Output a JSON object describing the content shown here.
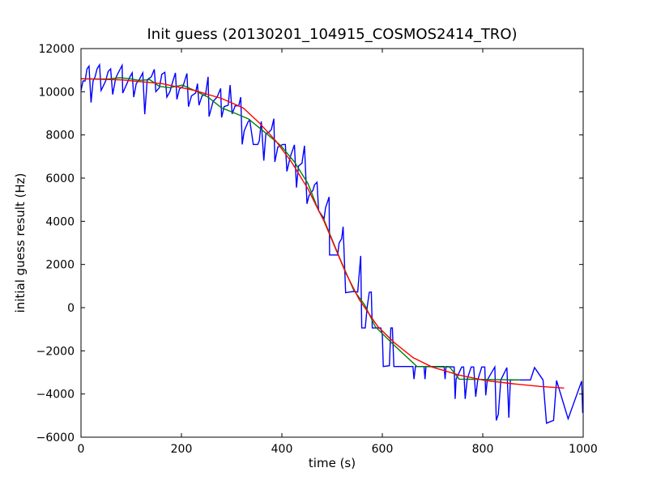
{
  "chart_data": {
    "type": "line",
    "title": "Init guess (20130201_104915_COSMOS2414_TRO)",
    "xlabel": "time (s)",
    "ylabel": "initial guess result (Hz)",
    "xlim": [
      0,
      1000
    ],
    "ylim": [
      -6000,
      12000
    ],
    "xticks": [
      0,
      200,
      400,
      600,
      800,
      1000
    ],
    "yticks": [
      -6000,
      -4000,
      -2000,
      0,
      2000,
      4000,
      6000,
      8000,
      10000,
      12000
    ],
    "grid": false,
    "series": [
      {
        "name": "raw",
        "color": "#0000ff",
        "x": [
          0,
          4,
          8,
          12,
          16,
          20,
          24,
          28,
          32,
          37,
          40,
          44,
          49,
          54,
          59,
          63,
          69,
          74,
          82,
          83,
          89,
          96,
          102,
          105,
          110,
          116,
          123,
          127,
          132,
          140,
          146,
          149,
          156,
          161,
          167,
          171,
          177,
          183,
          188,
          191,
          196,
          203,
          211,
          214,
          220,
          228,
          232,
          235,
          241,
          248,
          253,
          255,
          263,
          271,
          278,
          280,
          285,
          293,
          297,
          301,
          307,
          314,
          318,
          321,
          325,
          333,
          336,
          343,
          352,
          355,
          359,
          364,
          368,
          374,
          379,
          384,
          386,
          392,
          402,
          407,
          410,
          417,
          425,
          429,
          433,
          440,
          445,
          450,
          454,
          462,
          465,
          470,
          473,
          484,
          487,
          494,
          495,
          511,
          514,
          519,
          522,
          527,
          535,
          543,
          551,
          557,
          559,
          566,
          570,
          574,
          578,
          580,
          597,
          600,
          602,
          614,
          617,
          620,
          623,
          661,
          663,
          666,
          683,
          685,
          687,
          723,
          725,
          727,
          743,
          745,
          747,
          758,
          762,
          765,
          769,
          777,
          782,
          786,
          790,
          798,
          804,
          806,
          809,
          824,
          827,
          831,
          836,
          848,
          852,
          855,
          895,
          903,
          920,
          927,
          941,
          947,
          970,
          997,
          999
        ],
        "y": [
          10060,
          10500,
          10500,
          11060,
          11190,
          9500,
          10500,
          10690,
          11060,
          11250,
          10060,
          10250,
          10500,
          10940,
          11060,
          9875,
          10625,
          10875,
          11225,
          9940,
          10250,
          10625,
          10875,
          9750,
          10375,
          10560,
          10875,
          8960,
          10560,
          10690,
          11040,
          10000,
          10190,
          10810,
          10900,
          9750,
          10000,
          10500,
          10875,
          9650,
          10125,
          10250,
          10850,
          9310,
          9810,
          9940,
          10375,
          9375,
          9810,
          9875,
          10690,
          8850,
          9560,
          9750,
          10150,
          8810,
          9310,
          9375,
          10310,
          8975,
          9350,
          9350,
          9750,
          7560,
          8190,
          8625,
          8690,
          7560,
          7560,
          7725,
          8625,
          6810,
          8060,
          8125,
          8250,
          8750,
          6750,
          7440,
          7560,
          7560,
          6310,
          7000,
          7540,
          5560,
          6560,
          6690,
          7500,
          4810,
          5190,
          5440,
          5690,
          5810,
          4500,
          4125,
          4625,
          5125,
          2440,
          2440,
          3000,
          3190,
          3750,
          690,
          725,
          750,
          725,
          2400,
          -940,
          -940,
          60,
          710,
          725,
          -940,
          -940,
          -1250,
          -2725,
          -2690,
          -940,
          -940,
          -2725,
          -2725,
          -3310,
          -2725,
          -2725,
          -3310,
          -2725,
          -2725,
          -3310,
          -2725,
          -2750,
          -4225,
          -3310,
          -2750,
          -2750,
          -4225,
          -3310,
          -2750,
          -2750,
          -4125,
          -3350,
          -2750,
          -2750,
          -4060,
          -3350,
          -2750,
          -5225,
          -4940,
          -3350,
          -2775,
          -5100,
          -3350,
          -3350,
          -2775,
          -3350,
          -5350,
          -5225,
          -3375,
          -5150,
          -3400,
          -4880
        ]
      },
      {
        "name": "smoothed",
        "color": "#008000",
        "x": [
          0,
          54,
          78,
          97,
          116,
          137,
          156,
          177,
          202,
          226,
          253,
          280,
          301,
          333,
          366,
          398,
          425,
          452,
          473,
          484,
          516,
          543,
          565,
          586,
          624,
          669,
          734,
          753,
          874
        ],
        "y": [
          10600,
          10590,
          10650,
          10600,
          10525,
          10560,
          10250,
          10190,
          10310,
          10060,
          9750,
          9250,
          9060,
          8750,
          8125,
          7500,
          6750,
          5750,
          4500,
          4060,
          2250,
          810,
          125,
          -880,
          -1750,
          -2725,
          -2750,
          -3310,
          -3350
        ]
      },
      {
        "name": "fit",
        "color": "#ff0000",
        "x": [
          0,
          81,
          161,
          226,
          280,
          323,
          355,
          387,
          419,
          452,
          473,
          484,
          527,
          554,
          591,
          624,
          661,
          699,
          753,
          806,
          860,
          914,
          962
        ],
        "y": [
          10600,
          10550,
          10375,
          10060,
          9690,
          9250,
          8560,
          7750,
          6750,
          5500,
          4500,
          4000,
          1620,
          375,
          -875,
          -1625,
          -2310,
          -2750,
          -3125,
          -3375,
          -3525,
          -3650,
          -3725
        ]
      }
    ]
  }
}
